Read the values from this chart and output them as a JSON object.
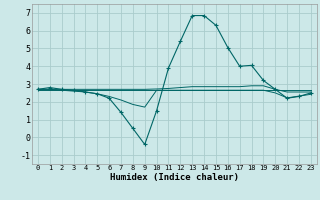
{
  "xlabel": "Humidex (Indice chaleur)",
  "bg_color": "#cce8e8",
  "grid_color": "#aacccc",
  "line_color": "#006666",
  "xlim": [
    -0.5,
    23.5
  ],
  "ylim": [
    -1.5,
    7.5
  ],
  "xticks": [
    0,
    1,
    2,
    3,
    4,
    5,
    6,
    7,
    8,
    9,
    10,
    11,
    12,
    13,
    14,
    15,
    16,
    17,
    18,
    19,
    20,
    21,
    22,
    23
  ],
  "yticks": [
    -1,
    0,
    1,
    2,
    3,
    4,
    5,
    6,
    7
  ],
  "series": [
    {
      "x": [
        0,
        1,
        2,
        3,
        4,
        5,
        6,
        7,
        8,
        9,
        10,
        11,
        12,
        13,
        14,
        15,
        16,
        17,
        18,
        19,
        20,
        21,
        22,
        23
      ],
      "y": [
        2.7,
        2.8,
        2.7,
        2.65,
        2.55,
        2.45,
        2.2,
        1.4,
        0.5,
        -0.4,
        1.5,
        3.9,
        5.4,
        6.85,
        6.85,
        6.3,
        5.05,
        4.0,
        4.05,
        3.2,
        2.7,
        2.2,
        2.3,
        2.5
      ],
      "marker": true
    },
    {
      "x": [
        0,
        1,
        2,
        3,
        4,
        5,
        6,
        7,
        8,
        9,
        10,
        11,
        12,
        13,
        14,
        15,
        16,
        17,
        18,
        19,
        20,
        21,
        22,
        23
      ],
      "y": [
        2.7,
        2.7,
        2.7,
        2.7,
        2.7,
        2.7,
        2.7,
        2.7,
        2.7,
        2.7,
        2.72,
        2.75,
        2.8,
        2.85,
        2.85,
        2.85,
        2.85,
        2.85,
        2.9,
        2.9,
        2.7,
        2.55,
        2.55,
        2.55
      ],
      "marker": false
    },
    {
      "x": [
        0,
        1,
        2,
        3,
        4,
        5,
        6,
        7,
        8,
        9,
        10,
        11,
        12,
        13,
        14,
        15,
        16,
        17,
        18,
        19,
        20,
        21,
        22,
        23
      ],
      "y": [
        2.65,
        2.65,
        2.65,
        2.65,
        2.65,
        2.65,
        2.65,
        2.65,
        2.65,
        2.65,
        2.65,
        2.65,
        2.65,
        2.65,
        2.65,
        2.65,
        2.65,
        2.65,
        2.65,
        2.65,
        2.65,
        2.65,
        2.65,
        2.65
      ],
      "marker": false
    },
    {
      "x": [
        0,
        1,
        2,
        3,
        4,
        5,
        6,
        7,
        8,
        9,
        10,
        11,
        12,
        13,
        14,
        15,
        16,
        17,
        18,
        19,
        20,
        21,
        22,
        23
      ],
      "y": [
        2.7,
        2.7,
        2.65,
        2.6,
        2.55,
        2.45,
        2.3,
        2.1,
        1.85,
        1.7,
        2.65,
        2.65,
        2.65,
        2.65,
        2.65,
        2.65,
        2.65,
        2.65,
        2.65,
        2.65,
        2.5,
        2.22,
        2.32,
        2.42
      ],
      "marker": false
    }
  ]
}
